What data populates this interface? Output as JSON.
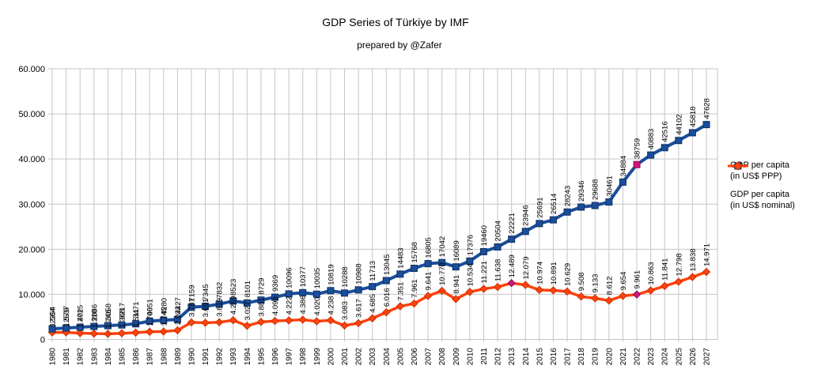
{
  "title": "GDP Series of Türkiye by IMF",
  "subtitle": "prepared by @Zafer",
  "legend": [
    {
      "line1": "GDP per capita",
      "line2": "(in US$ PPP)",
      "marker": "square"
    },
    {
      "line1": "GDP per capita",
      "line2": "(in US$ nominal)",
      "marker": "diamond"
    }
  ],
  "colors": {
    "ppp_blue": "#1A4E9C",
    "nominal_orange": "#FF420E",
    "highlight_magenta": "#D0147C",
    "gridline": "#c6c6c6",
    "axis_text": "#000000"
  },
  "chart_data": {
    "type": "line",
    "title": "GDP Series of Türkiye by IMF",
    "subtitle": "prepared by @Zafer",
    "grid": true,
    "legend_position": "right",
    "ylim": [
      0,
      60000
    ],
    "y_tick_interval": 10000,
    "y_tick_labels": [
      "0",
      "10.000",
      "20.000",
      "30.000",
      "40.000",
      "50.000",
      "60.000"
    ],
    "x": [
      1980,
      1981,
      1982,
      1983,
      1984,
      1985,
      1986,
      1987,
      1988,
      1989,
      1990,
      1991,
      1992,
      1993,
      1994,
      1995,
      1996,
      1997,
      1998,
      1999,
      2000,
      2001,
      2002,
      2003,
      2004,
      2005,
      2006,
      2007,
      2008,
      2009,
      2010,
      2011,
      2012,
      2013,
      2014,
      2015,
      2016,
      2017,
      2018,
      2019,
      2020,
      2021,
      2022,
      2023,
      2024,
      2025,
      2026,
      2027
    ],
    "series": [
      {
        "name": "GDP per capita (in US$ PPP)",
        "marker": "square",
        "color": "#1A4E9C",
        "edge_color": "#10305E",
        "label_format": "plain",
        "values": [
          2354,
          2537,
          2715,
          2886,
          3058,
          3217,
          3471,
          4051,
          4280,
          4427,
          7159,
          7345,
          7832,
          8523,
          8101,
          8729,
          9369,
          10096,
          10377,
          10035,
          10819,
          10288,
          10988,
          11713,
          13045,
          14483,
          15768,
          16805,
          17042,
          16089,
          17376,
          19460,
          20504,
          22221,
          23946,
          25691,
          26514,
          28243,
          29346,
          29688,
          30461,
          34884,
          38759,
          40883,
          42516,
          44102,
          45818,
          47628
        ],
        "highlights": [
          {
            "year": 2022,
            "color": "#D0147C"
          }
        ]
      },
      {
        "name": "GDP per capita (in US$ nominal)",
        "marker": "diamond",
        "color": "#FF420E",
        "edge_color": "#C83200",
        "label_format": "dot-thousands",
        "values": [
          1564,
          1579,
          1402,
          1310,
          1246,
          1368,
          1511,
          1706,
          1745,
          2022,
          3781,
          3691,
          3819,
          4269,
          3027,
          3881,
          4099,
          4222,
          4386,
          4020,
          4238,
          3083,
          3617,
          4685,
          6016,
          7351,
          7961,
          9641,
          10778,
          8941,
          10534,
          11221,
          11638,
          12489,
          12079,
          10974,
          10891,
          10629,
          9508,
          9133,
          8612,
          9654,
          9961,
          10863,
          11841,
          12798,
          13838,
          14971
        ],
        "highlights": [
          {
            "year": 2013,
            "color": "#D0147C"
          },
          {
            "year": 2022,
            "color": "#D0147C"
          }
        ]
      }
    ]
  }
}
